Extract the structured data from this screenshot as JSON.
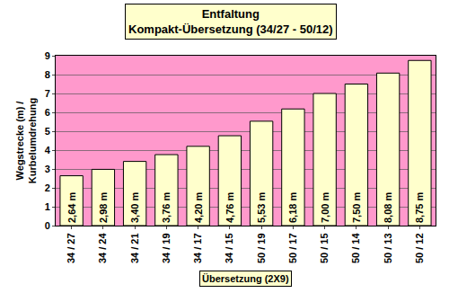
{
  "chart_data": {
    "type": "bar",
    "title": "Entfaltung",
    "subtitle": "Kompakt-Übersetzung (34/27 - 50/12)",
    "x_label": "Übersetzung (2X9)",
    "y_label": "Wegstrecke (m) /\nKurbelumdrehung",
    "categories": [
      "34 / 27",
      "34 / 24",
      "34 / 21",
      "34 / 19",
      "34 / 17",
      "34 / 15",
      "50 / 19",
      "50 / 17",
      "50 / 15",
      "50 / 14",
      "50 / 13",
      "50 / 12"
    ],
    "values": [
      2.64,
      2.98,
      3.4,
      3.76,
      4.2,
      4.76,
      5.53,
      6.18,
      7.0,
      7.5,
      8.08,
      8.75
    ],
    "value_labels": [
      "2,64 m",
      "2,98 m",
      "3,40 m",
      "3,76 m",
      "4,20 m",
      "4,76 m",
      "5,53 m",
      "6,18 m",
      "7,00 m",
      "7,50 m",
      "8,08 m",
      "8,75 m"
    ],
    "color": "#ffffcc",
    "ylim": [
      0,
      9
    ],
    "yticks": [
      0,
      1,
      2,
      3,
      4,
      5,
      6,
      7,
      8,
      9
    ],
    "grid": true,
    "data_labels": true
  }
}
